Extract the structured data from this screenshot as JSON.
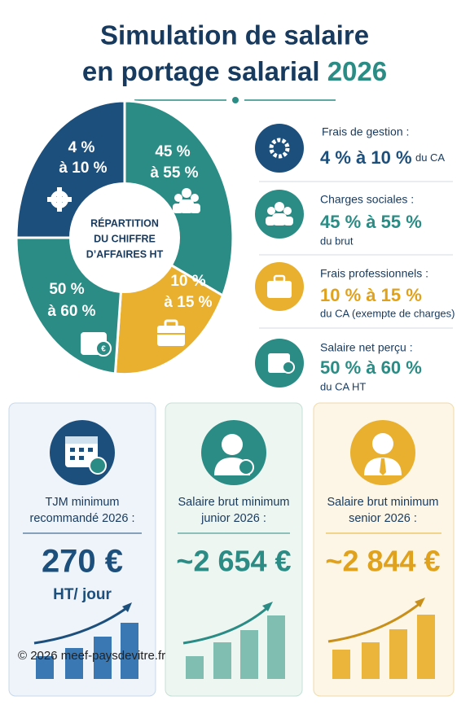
{
  "header": {
    "title_line1": "Simulation de salaire",
    "title_line2": "en portage salarial",
    "title_year": "2026"
  },
  "pie": {
    "center_label": [
      "RÉPARTITION",
      "DU CHIFFRE",
      "D’AFFAIRES HT"
    ],
    "segments": [
      {
        "line1": "4 %",
        "line2": "à 10 %"
      },
      {
        "line1": "45 %",
        "line2": "à 55 %"
      },
      {
        "line1": "10 %",
        "line2": "à 15 %"
      },
      {
        "line1": "50 %",
        "line2": "à 60 %"
      }
    ]
  },
  "items": [
    {
      "title": "Frais de gestion :",
      "value": "4 % à 10 %",
      "note": "du CA"
    },
    {
      "title": "Charges sociales :",
      "value": "45 % à 55 %",
      "note": "du brut"
    },
    {
      "title": "Frais professionnels :",
      "value": "10 % à 15 %",
      "note": "du CA (exempte de charges)"
    },
    {
      "title": "Salaire net perçu :",
      "value": "50 % à 60 %",
      "note": "du CA HT"
    }
  ],
  "cards": [
    {
      "label_line1": "TJM minimum",
      "label_line2": "recommandé 2026 :",
      "value": "270 €",
      "unit": "HT/ jour"
    },
    {
      "label_line1": "Salaire brut minimum",
      "label_line2": "junior 2026 :",
      "value": "~2 654 €"
    },
    {
      "label_line1": "Salaire brut minimum",
      "label_line2": "senior 2026 :",
      "value": "~2 844 €"
    }
  ],
  "footer": "© 2026 meef-paysdevitre.fr"
}
